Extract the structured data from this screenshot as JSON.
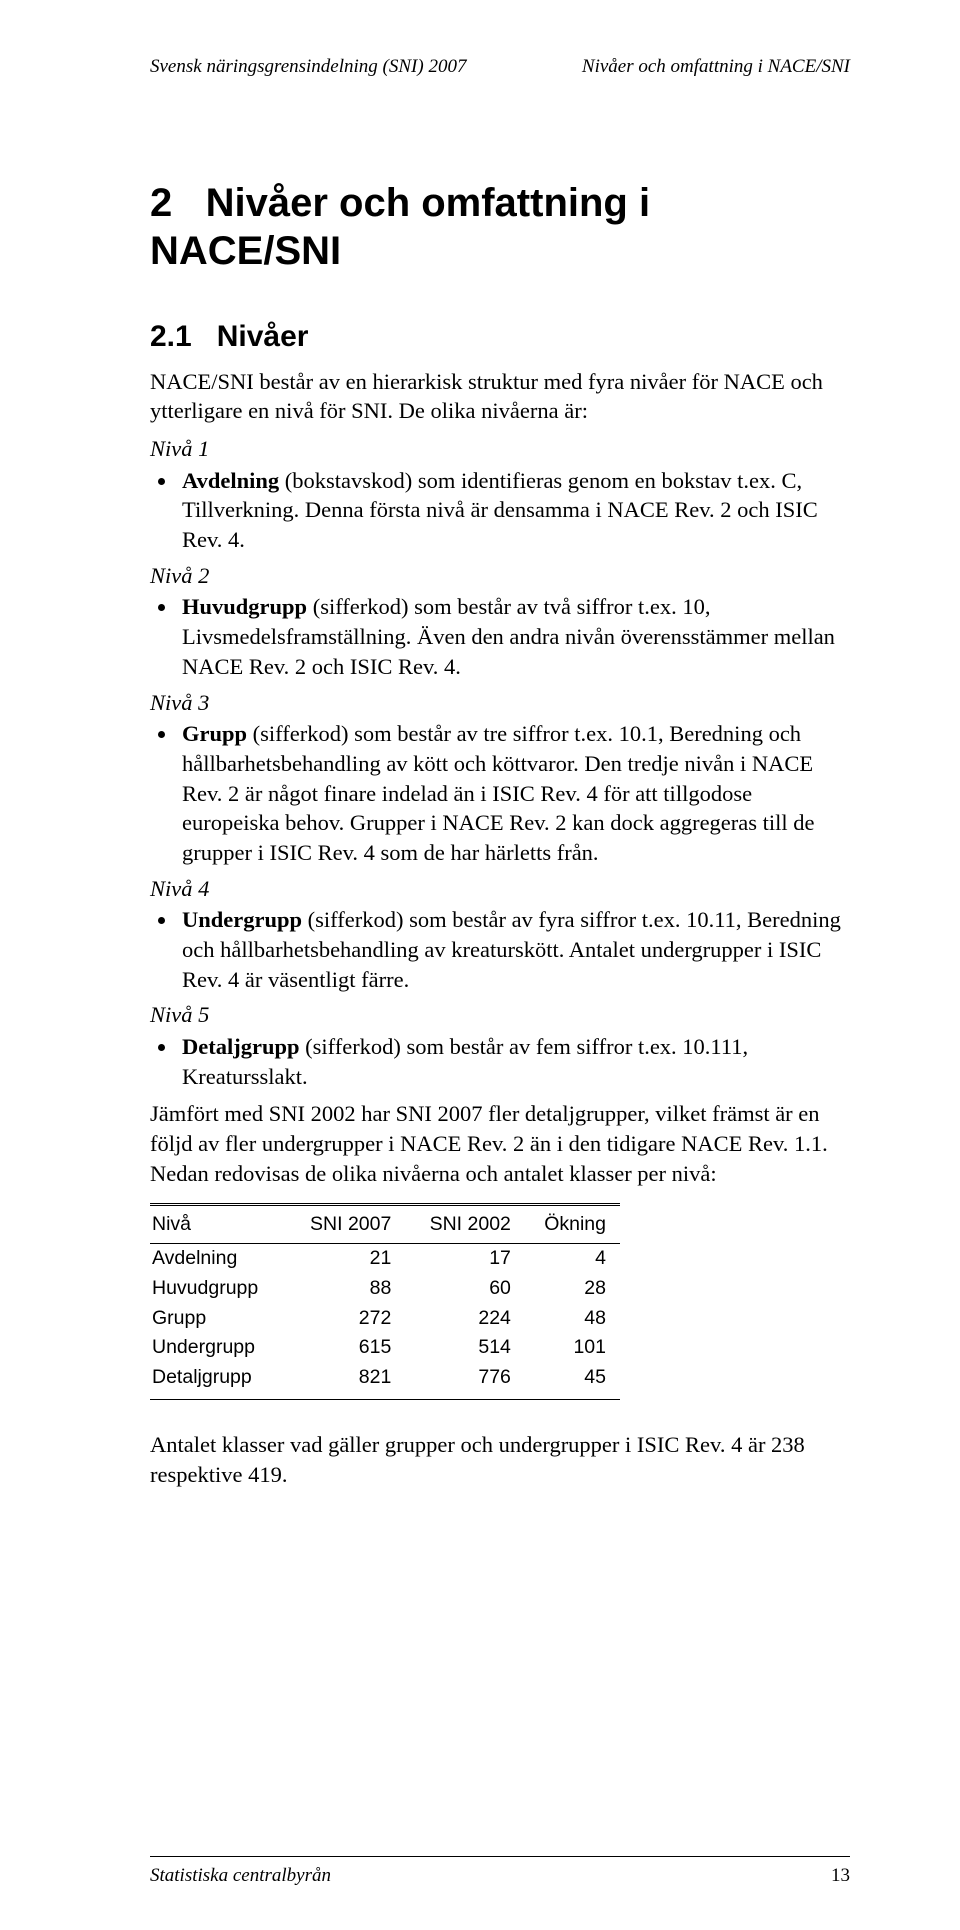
{
  "header": {
    "left": "Svensk näringsgrensindelning (SNI) 2007",
    "right": "Nivåer och omfattning i NACE/SNI"
  },
  "chapter": {
    "number": "2",
    "title": "Nivåer och omfattning i NACE/SNI"
  },
  "section": {
    "number": "2.1",
    "title": "Nivåer"
  },
  "intro": "NACE/SNI består av en hierarkisk struktur med fyra nivåer för NACE och ytterligare en nivå för SNI. De olika nivåerna är:",
  "levels": {
    "n1": {
      "label": "Nivå 1",
      "bullet_strong": "Avdelning",
      "bullet_rest": " (bokstavskod) som identifieras genom en bokstav t.ex. C, Tillverkning. Denna första nivå är densamma i NACE Rev. 2 och ISIC Rev. 4."
    },
    "n2": {
      "label": "Nivå 2",
      "bullet_strong": "Huvudgrupp",
      "bullet_rest": " (sifferkod) som består av två siffror t.ex. 10, Livsmedelsframställning. Även den andra nivån överensstämmer mellan NACE Rev. 2 och ISIC Rev. 4."
    },
    "n3": {
      "label": "Nivå 3",
      "bullet_strong": "Grupp",
      "bullet_rest": " (sifferkod) som består av tre siffror t.ex. 10.1, Beredning och hållbarhetsbehandling av kött och köttvaror. Den tredje nivån i NACE Rev. 2 är något finare indelad än i ISIC Rev. 4 för att tillgodose europeiska behov. Grupper i NACE Rev. 2 kan dock aggregeras till de grupper i ISIC Rev. 4 som de har härletts från."
    },
    "n4": {
      "label": "Nivå 4",
      "bullet_strong": "Undergrupp",
      "bullet_rest": " (sifferkod) som består av fyra siffror t.ex. 10.11, Beredning och hållbarhetsbehandling av kreaturskött. Antalet undergrupper i ISIC Rev. 4 är väsentligt färre."
    },
    "n5": {
      "label": "Nivå 5",
      "bullet_strong": "Detaljgrupp",
      "bullet_rest": " (sifferkod) som består av fem siffror t.ex. 10.111, Kreatursslakt."
    }
  },
  "comparison_para": "Jämfört med SNI 2002 har SNI 2007 fler detaljgrupper, vilket främst är en följd av fler undergrupper i NACE Rev. 2 än i den tidigare NACE Rev. 1.1. Nedan redovisas de olika nivåerna och antalet klasser per nivå:",
  "table": {
    "columns": [
      "Nivå",
      "SNI 2007",
      "SNI 2002",
      "Ökning"
    ],
    "rows": [
      [
        "Avdelning",
        "21",
        "17",
        "4"
      ],
      [
        "Huvudgrupp",
        "88",
        "60",
        "28"
      ],
      [
        "Grupp",
        "272",
        "224",
        "48"
      ],
      [
        "Undergrupp",
        "615",
        "514",
        "101"
      ],
      [
        "Detaljgrupp",
        "821",
        "776",
        "45"
      ]
    ]
  },
  "closing_para": "Antalet klasser vad gäller grupper och undergrupper i ISIC Rev. 4 är 238 respektive 419.",
  "footer": {
    "publisher": "Statistiska centralbyrån",
    "page": "13"
  }
}
